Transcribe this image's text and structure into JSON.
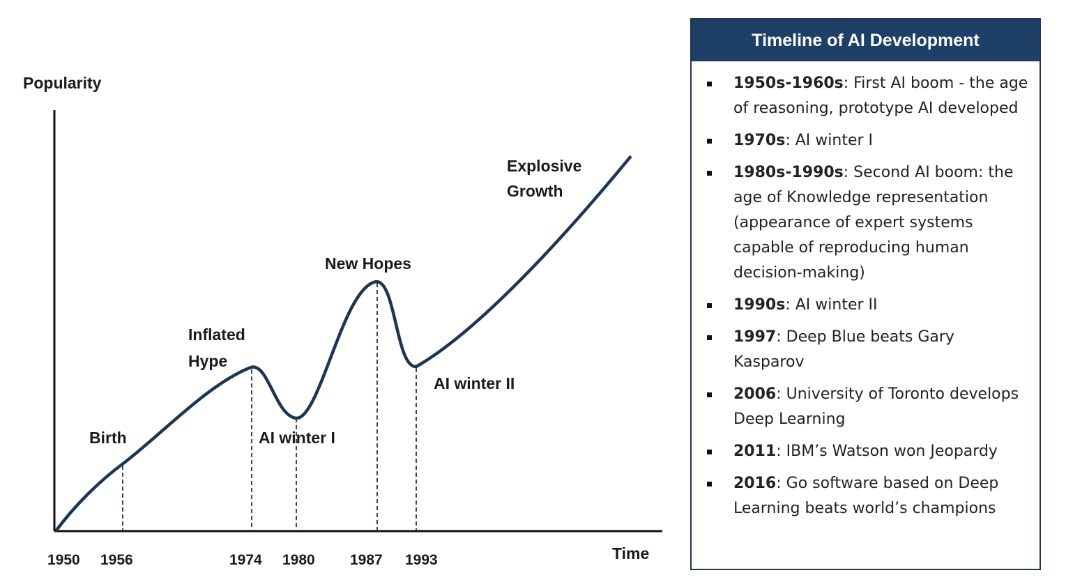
{
  "chart_data": {
    "type": "line",
    "title": "",
    "ylabel": "Popularity",
    "xlabel": "Time",
    "ticks": [
      "1950",
      "1956",
      "1974",
      "1980",
      "1987",
      "1993"
    ],
    "events": [
      {
        "label": "Birth",
        "year": "1956"
      },
      {
        "label": "Inflated\nHype",
        "year": "1974"
      },
      {
        "label": "AI winter I",
        "year": "1980"
      },
      {
        "label": "New Hopes",
        "year": "1987"
      },
      {
        "label": "AI winter II",
        "year": "1993"
      },
      {
        "label": "Explosive\nGrowth",
        "year": ""
      }
    ]
  },
  "panel": {
    "title": "Timeline of AI Development",
    "items": [
      {
        "year": "1950s-1960s",
        "text": ": First AI boom - the age of reasoning, prototype AI developed"
      },
      {
        "year": "1970s",
        "text": ": AI winter I"
      },
      {
        "year": "1980s-1990s",
        "text": ": Second AI boom: the age of Knowledge representation (appearance of expert systems capable of reproducing human decision-making)"
      },
      {
        "year": "1990s",
        "text": ": AI winter II"
      },
      {
        "year": "1997",
        "text": ": Deep Blue beats Gary Kasparov"
      },
      {
        "year": "2006",
        "text": ": University of Toronto develops Deep Learning"
      },
      {
        "year": "2011",
        "text": ": IBM’s Watson won Jeopardy"
      },
      {
        "year": "2016",
        "text": ": Go software based on Deep Learning beats world’s champions"
      }
    ]
  }
}
